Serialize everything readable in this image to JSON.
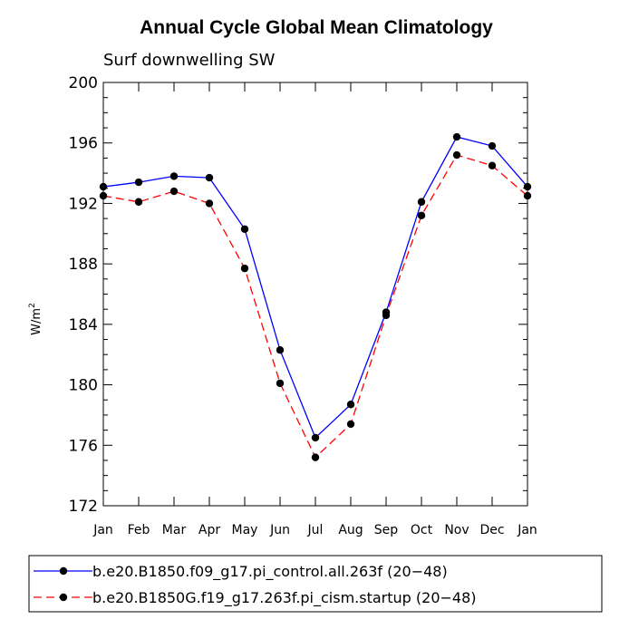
{
  "chart_data": {
    "type": "line",
    "title": "Annual Cycle Global Mean Climatology",
    "subtitle": "Surf downwelling SW",
    "ylabel": "W/m",
    "ylabel_sup": "2",
    "xlabel": "",
    "categories": [
      "Jan",
      "Feb",
      "Mar",
      "Apr",
      "May",
      "Jun",
      "Jul",
      "Aug",
      "Sep",
      "Oct",
      "Nov",
      "Dec",
      "Jan"
    ],
    "ylim": [
      172,
      200
    ],
    "yticks": [
      172,
      176,
      180,
      184,
      188,
      192,
      196,
      200
    ],
    "series": [
      {
        "name": "b.e20.B1850.f09_g17.pi_control.all.263f (20−48)",
        "color": "#0000ff",
        "dash": "solid",
        "values": [
          193.1,
          193.4,
          193.8,
          193.7,
          190.3,
          182.3,
          176.5,
          178.7,
          184.8,
          192.1,
          196.4,
          195.8,
          193.1
        ]
      },
      {
        "name": "b.e20.B1850G.f19_g17.263f.pi_cism.startup (20−48)",
        "color": "#ff0000",
        "dash": "dashed",
        "values": [
          192.5,
          192.1,
          192.8,
          192.0,
          187.7,
          180.1,
          175.2,
          177.4,
          184.6,
          191.2,
          195.2,
          194.5,
          192.5
        ]
      }
    ]
  }
}
